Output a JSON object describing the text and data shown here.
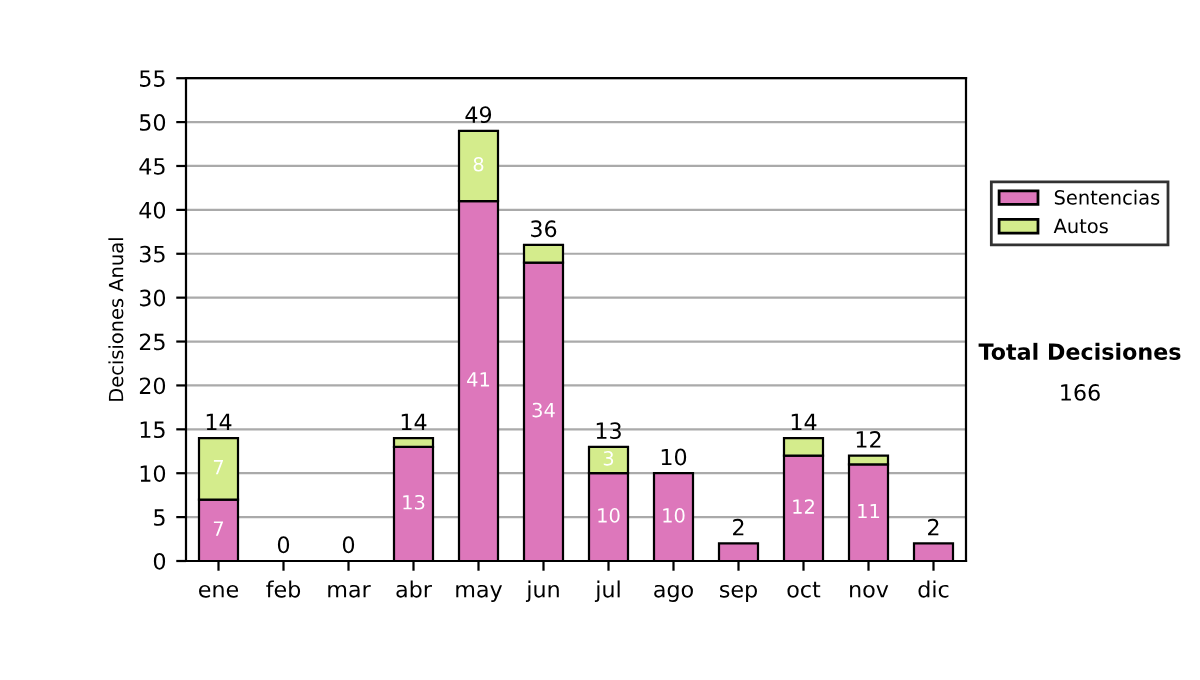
{
  "chart_data": {
    "type": "bar",
    "stacked": true,
    "ylabel": "Decisiones Anual",
    "categories": [
      "ene",
      "feb",
      "mar",
      "abr",
      "may",
      "jun",
      "jul",
      "ago",
      "sep",
      "oct",
      "nov",
      "dic"
    ],
    "series": [
      {
        "name": "Sentencias",
        "color": "#dd77bb",
        "values": [
          7,
          0,
          0,
          13,
          41,
          34,
          10,
          10,
          2,
          12,
          11,
          2
        ],
        "value_labels": [
          "7",
          null,
          null,
          "13",
          "41",
          "34",
          "10",
          "10",
          null,
          "12",
          "11",
          null
        ]
      },
      {
        "name": "Autos",
        "color": "#d4ec8c",
        "values": [
          7,
          0,
          0,
          1,
          8,
          2,
          3,
          0,
          0,
          2,
          1,
          0
        ],
        "value_labels": [
          "7",
          null,
          null,
          null,
          "8",
          null,
          "3",
          null,
          null,
          null,
          null,
          null
        ]
      }
    ],
    "totals": [
      "14",
      "0",
      "0",
      "14",
      "49",
      "36",
      "13",
      "10",
      "2",
      "14",
      "12",
      "2"
    ],
    "ylim": [
      0,
      55
    ],
    "yticks": [
      0,
      5,
      10,
      15,
      20,
      25,
      30,
      35,
      40,
      45,
      50,
      55
    ],
    "grid": "y",
    "legend": "right",
    "annotations": [
      "Total Decisiones",
      "166"
    ]
  }
}
